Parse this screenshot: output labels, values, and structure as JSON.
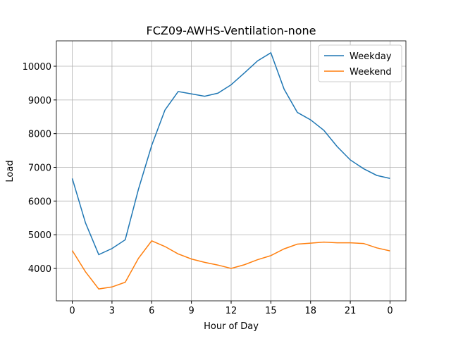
{
  "chart_data": {
    "type": "line",
    "title": "FCZ09-AWHS-Ventilation-none",
    "x_label": "Hour of Day",
    "y_label": "Load",
    "x": [
      0,
      1,
      2,
      3,
      4,
      5,
      6,
      7,
      8,
      9,
      10,
      11,
      12,
      13,
      14,
      15,
      16,
      17,
      18,
      19,
      20,
      21,
      22,
      23,
      24
    ],
    "series": [
      {
        "name": "Weekday",
        "color": "#1f77b4",
        "values": [
          6670,
          5350,
          4410,
          4590,
          4850,
          6350,
          7650,
          8700,
          9250,
          9180,
          9110,
          9200,
          9450,
          9800,
          10160,
          10400,
          9320,
          8630,
          8410,
          8100,
          7620,
          7220,
          6960,
          6760,
          6670
        ]
      },
      {
        "name": "Weekend",
        "color": "#ff7f0e",
        "values": [
          4530,
          3900,
          3390,
          3450,
          3590,
          4300,
          4820,
          4650,
          4430,
          4280,
          4180,
          4100,
          4000,
          4110,
          4260,
          4380,
          4580,
          4720,
          4750,
          4780,
          4760,
          4760,
          4740,
          4610,
          4520
        ]
      }
    ],
    "xlim": [
      -1.2,
      25.2
    ],
    "ylim": [
      3038,
      10753
    ],
    "xticks": [
      0,
      3,
      6,
      9,
      12,
      15,
      18,
      21,
      {
        "value": 24,
        "label": "0"
      }
    ],
    "yticks": [
      4000,
      5000,
      6000,
      7000,
      8000,
      9000,
      10000
    ],
    "grid": true,
    "legend": "upper right"
  }
}
